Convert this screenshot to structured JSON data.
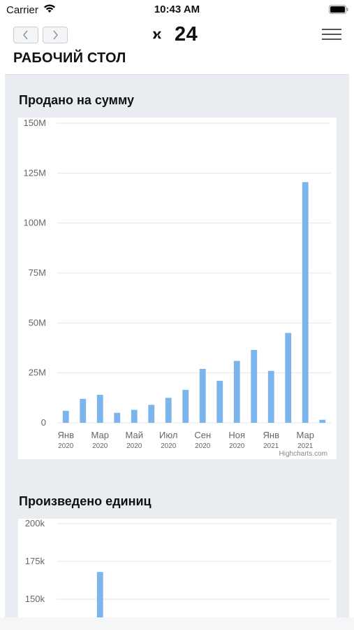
{
  "status_bar": {
    "carrier": "Carrier",
    "time": "10:43 AM"
  },
  "header": {
    "logo_text": "24",
    "page_title": "РАБОЧИЙ СТОЛ"
  },
  "colors": {
    "bar": "#7cb5ec",
    "grid": "#e6e6e6",
    "panel_bg": "#e9edf2"
  },
  "icons": [
    "wifi-icon",
    "battery-icon",
    "chevron-left-icon",
    "chevron-right-icon",
    "logo-icon",
    "hamburger-menu-icon"
  ],
  "charts": {
    "sold": {
      "title": "Продано на сумму",
      "credits": "Highcharts.com"
    },
    "produced": {
      "title": "Произведено единиц"
    }
  },
  "chart_data": [
    {
      "type": "bar",
      "title": "Продано на сумму",
      "categories": [
        "2020-01",
        "2020-02",
        "2020-03",
        "2020-04",
        "2020-05",
        "2020-06",
        "2020-07",
        "2020-08",
        "2020-09",
        "2020-10",
        "2020-11",
        "2020-12",
        "2021-01",
        "2021-02",
        "2021-03",
        "2021-04"
      ],
      "values": [
        6,
        12,
        14,
        5,
        6.5,
        9,
        12.5,
        16.5,
        27,
        21,
        31,
        36.5,
        26,
        45,
        120.5,
        1.5
      ],
      "unit": "M",
      "ylim": [
        0,
        150
      ],
      "yticks": [
        "0",
        "25M",
        "50M",
        "75M",
        "100M",
        "125M",
        "150M"
      ],
      "xticks": [
        {
          "label": "Янв",
          "sub": "2020",
          "index": 0
        },
        {
          "label": "Мар",
          "sub": "2020",
          "index": 2
        },
        {
          "label": "Май",
          "sub": "2020",
          "index": 4
        },
        {
          "label": "Июл",
          "sub": "2020",
          "index": 6
        },
        {
          "label": "Сен",
          "sub": "2020",
          "index": 8
        },
        {
          "label": "Ноя",
          "sub": "2020",
          "index": 10
        },
        {
          "label": "Янв",
          "sub": "2021",
          "index": 12
        },
        {
          "label": "Мар",
          "sub": "2021",
          "index": 14
        }
      ],
      "grid": true,
      "legend": "none"
    },
    {
      "type": "bar",
      "title": "Произведено единиц",
      "categories": [
        "2020-01",
        "2020-02",
        "2020-03"
      ],
      "values": [
        null,
        null,
        168
      ],
      "unit": "k",
      "ylim": [
        140,
        200
      ],
      "yticks": [
        "150k",
        "175k",
        "200k"
      ],
      "grid": true,
      "legend": "none"
    }
  ]
}
